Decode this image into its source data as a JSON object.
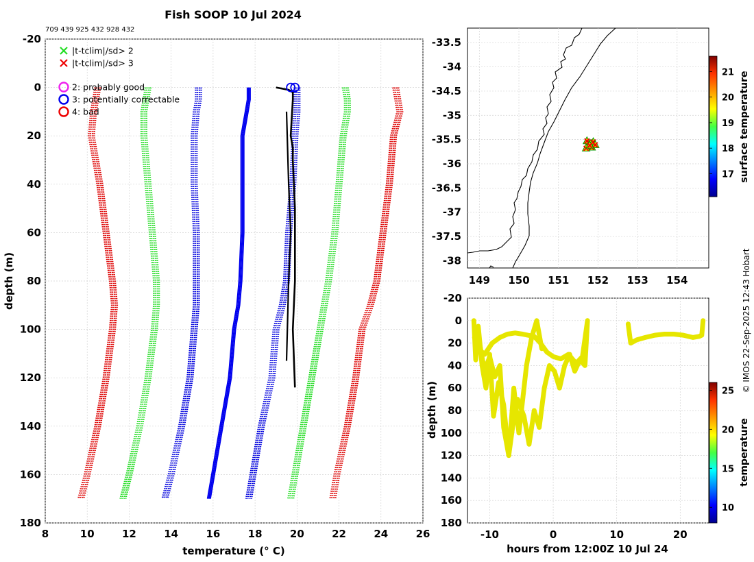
{
  "figure": {
    "title": "Fish SOOP 10 Jul 2024",
    "subtitle": "709 439 925 432 928 432",
    "credit": "© IMOS 22-Sep-2025 12:43 Hobart"
  },
  "chart_data": [
    {
      "type": "line",
      "name": "profile-plot",
      "xlabel": "temperature (° C)",
      "ylabel": "depth (m)",
      "xlim": [
        8,
        26
      ],
      "ylim": [
        180,
        -20
      ],
      "xticks": [
        8,
        10,
        12,
        14,
        16,
        18,
        20,
        22,
        24,
        26
      ],
      "yticks": [
        -20,
        0,
        20,
        40,
        60,
        80,
        100,
        120,
        140,
        160,
        180
      ],
      "grid": true,
      "legend_position": "top-left",
      "legend": [
        {
          "label": "|t-tclim|/sd> 2",
          "marker": "x",
          "color": "#22dd22"
        },
        {
          "label": "|t-tclim|/sd> 3",
          "marker": "x",
          "color": "#ee0000"
        },
        {
          "label": "2: probably good",
          "marker": "o",
          "color": "#ee22ee"
        },
        {
          "label": "3: potentially correctable",
          "marker": "o",
          "color": "#0000ee"
        },
        {
          "label": "4: bad",
          "marker": "o",
          "color": "#ee0000"
        }
      ],
      "depths": [
        0,
        5,
        10,
        20,
        40,
        60,
        80,
        90,
        100,
        120,
        140,
        160,
        170
      ],
      "series": [
        {
          "name": "clim -3sd",
          "color": "#dd0000",
          "style": "dotted",
          "temps": [
            10.5,
            10.4,
            10.3,
            10.2,
            10.6,
            10.9,
            11.2,
            11.3,
            11.2,
            10.9,
            10.5,
            10.0,
            9.7
          ]
        },
        {
          "name": "clim -2sd",
          "color": "#22dd22",
          "style": "dotted",
          "temps": [
            12.9,
            12.8,
            12.7,
            12.7,
            12.9,
            13.1,
            13.3,
            13.3,
            13.2,
            12.9,
            12.5,
            12.0,
            11.7
          ]
        },
        {
          "name": "clim -1sd",
          "color": "#0000dd",
          "style": "dotted",
          "temps": [
            15.3,
            15.3,
            15.2,
            15.1,
            15.1,
            15.2,
            15.2,
            15.2,
            15.1,
            14.9,
            14.5,
            14.0,
            13.7
          ]
        },
        {
          "name": "clim mean",
          "color": "#0000ee",
          "style": "solid",
          "temps": [
            17.7,
            17.7,
            17.6,
            17.4,
            17.4,
            17.4,
            17.3,
            17.2,
            17.0,
            16.8,
            16.4,
            16.0,
            15.8
          ]
        },
        {
          "name": "clim +1sd",
          "color": "#0000dd",
          "style": "dotted",
          "temps": [
            20.0,
            20.0,
            20.0,
            19.9,
            19.8,
            19.6,
            19.5,
            19.3,
            19.0,
            18.8,
            18.3,
            17.9,
            17.7
          ]
        },
        {
          "name": "clim +2sd",
          "color": "#22dd22",
          "style": "dotted",
          "temps": [
            22.3,
            22.4,
            22.4,
            22.2,
            22.0,
            21.8,
            21.5,
            21.3,
            21.1,
            20.7,
            20.3,
            19.9,
            19.7
          ]
        },
        {
          "name": "clim +3sd",
          "color": "#dd0000",
          "style": "dotted",
          "temps": [
            24.7,
            24.8,
            24.9,
            24.6,
            24.4,
            24.1,
            23.8,
            23.5,
            23.1,
            22.8,
            22.4,
            21.9,
            21.7
          ]
        }
      ],
      "observed": {
        "color": "#000000",
        "points": [
          [
            19.0,
            0
          ],
          [
            19.6,
            1
          ],
          [
            19.8,
            2
          ],
          [
            19.8,
            5
          ],
          [
            19.7,
            20
          ],
          [
            19.8,
            25
          ],
          [
            19.8,
            30
          ],
          [
            19.9,
            50
          ],
          [
            19.9,
            80
          ],
          [
            19.8,
            100
          ],
          [
            19.9,
            124
          ]
        ],
        "secondary": [
          [
            19.5,
            10
          ],
          [
            19.6,
            40
          ],
          [
            19.7,
            60
          ],
          [
            19.6,
            80
          ],
          [
            19.5,
            113
          ]
        ],
        "flags": [
          {
            "x": 19.7,
            "y": 0,
            "flag": 3
          },
          {
            "x": 19.9,
            "y": 0,
            "flag": 3
          }
        ]
      }
    },
    {
      "type": "scatter",
      "name": "map-plot",
      "xlim": [
        148.7,
        154.8
      ],
      "ylim": [
        -38.15,
        -33.2
      ],
      "xticks": [
        149,
        150,
        151,
        152,
        153,
        154
      ],
      "yticks": [
        -33.5,
        -34,
        -34.5,
        -35,
        -35.5,
        -36,
        -36.5,
        -37,
        -37.5,
        -38
      ],
      "grid": true,
      "colorbar": {
        "label": "surface temperature",
        "ticks": [
          17,
          18,
          19,
          20,
          21
        ],
        "range": [
          16.1,
          21.6
        ]
      },
      "points": [
        {
          "lon": 151.72,
          "lat": -35.53,
          "temp": 19.9
        },
        {
          "lon": 151.8,
          "lat": -35.58,
          "temp": 19.9
        },
        {
          "lon": 151.88,
          "lat": -35.55,
          "temp": 19.8
        },
        {
          "lon": 151.75,
          "lat": -35.64,
          "temp": 19.9
        },
        {
          "lon": 151.84,
          "lat": -35.66,
          "temp": 19.8
        },
        {
          "lon": 151.93,
          "lat": -35.61,
          "temp": 19.9
        },
        {
          "lon": 151.7,
          "lat": -35.68,
          "temp": 19.7
        },
        {
          "lon": 151.79,
          "lat": -35.62,
          "temp": 19.9
        }
      ]
    },
    {
      "type": "line",
      "name": "time-depth-plot",
      "xlabel": "hours from 12:00Z 10 Jul 24",
      "ylabel": "depth (m)",
      "xlim": [
        -13.5,
        24.5
      ],
      "ylim": [
        180,
        -20
      ],
      "xticks": [
        -10,
        0,
        10,
        20
      ],
      "yticks": [
        -20,
        0,
        20,
        40,
        60,
        80,
        100,
        120,
        140,
        160,
        180
      ],
      "grid": true,
      "colorbar": {
        "label": "temperature",
        "ticks": [
          10,
          15,
          20,
          25
        ],
        "range": [
          8,
          26
        ]
      },
      "line_color": "#e6e600",
      "series": [
        {
          "name": "track-a",
          "x": [
            -12.5,
            -12.2,
            -11.8,
            -11.2,
            -10.6,
            -10.0,
            -9.4,
            -8.6,
            -7.8,
            -7.0,
            -6.4,
            -5.6,
            -4.6,
            -3.8,
            -3.0,
            -2.2,
            -1.4,
            -0.6,
            0.2,
            1.0,
            1.8,
            2.6,
            3.4,
            4.2,
            5.0,
            5.4
          ],
          "depth": [
            0,
            35,
            5,
            40,
            60,
            30,
            85,
            55,
            75,
            120,
            95,
            70,
            85,
            110,
            80,
            95,
            60,
            40,
            45,
            60,
            40,
            30,
            45,
            35,
            40,
            0
          ]
        },
        {
          "name": "track-b",
          "x": [
            -12.4,
            -11.8,
            -10.8,
            -9.6,
            -8.4,
            -7.2,
            -6.0,
            -4.8,
            -4.0,
            -3.0,
            -2.0,
            -1.0,
            0.0,
            1.2,
            2.4,
            3.6,
            4.6,
            5.4
          ],
          "depth": [
            15,
            25,
            30,
            20,
            15,
            12,
            11,
            12,
            13,
            14,
            20,
            28,
            32,
            34,
            30,
            38,
            32,
            0
          ]
        },
        {
          "name": "track-c",
          "x": [
            -11.6,
            -10.8,
            -10.0,
            -9.2,
            -8.4,
            -7.8,
            -7.0,
            -6.2,
            -5.4,
            -4.8,
            -4.2,
            -3.4,
            -2.6,
            -1.8
          ],
          "depth": [
            20,
            45,
            32,
            50,
            40,
            95,
            120,
            60,
            100,
            70,
            40,
            15,
            0,
            25
          ]
        },
        {
          "name": "track-d",
          "x": [
            11.8,
            12.2,
            13.2,
            14.5,
            16.0,
            17.5,
            19.0,
            20.5,
            22.0,
            23.0,
            23.4,
            23.6
          ],
          "depth": [
            3,
            20,
            17,
            15,
            13,
            12,
            12,
            13,
            15,
            14,
            13,
            0
          ]
        }
      ]
    }
  ]
}
